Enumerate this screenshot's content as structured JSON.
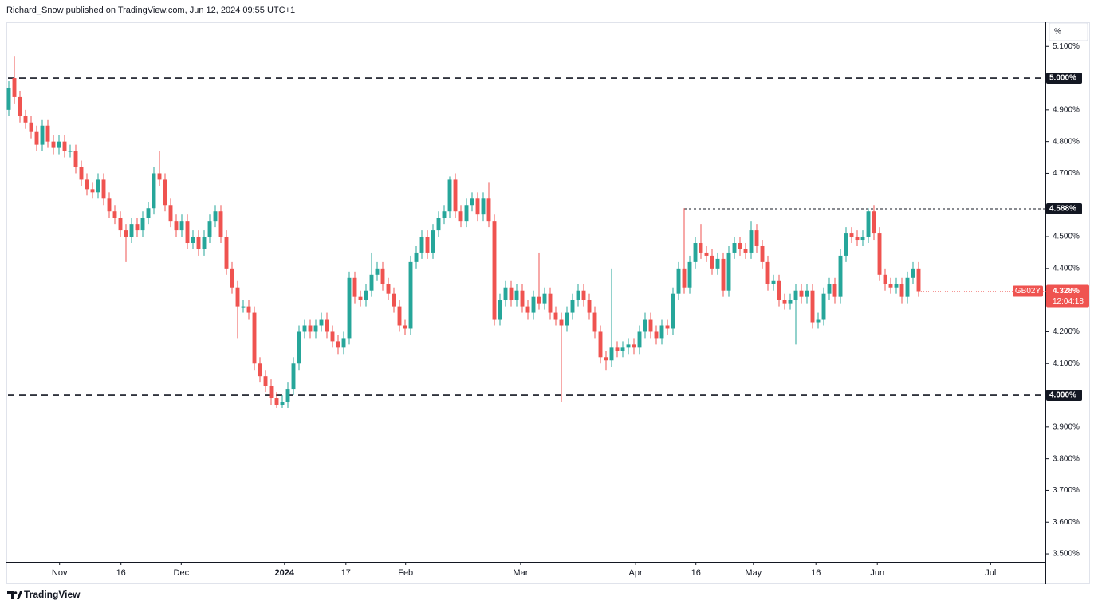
{
  "header": "Richard_Snow published on TradingView.com, Jun 12, 2024 09:55 UTC+1",
  "footer": "TradingView",
  "chart_data": {
    "type": "candlestick",
    "y_unit": "%",
    "ylim": [
      3.475,
      5.176
    ],
    "yticks": [
      {
        "value": 3.5,
        "label": "3.500%"
      },
      {
        "value": 3.6,
        "label": "3.600%"
      },
      {
        "value": 3.7,
        "label": "3.700%"
      },
      {
        "value": 3.8,
        "label": "3.800%"
      },
      {
        "value": 3.9,
        "label": "3.900%"
      },
      {
        "value": 4.1,
        "label": "4.100%"
      },
      {
        "value": 4.2,
        "label": "4.200%"
      },
      {
        "value": 4.4,
        "label": "4.400%"
      },
      {
        "value": 4.5,
        "label": "4.500%"
      },
      {
        "value": 4.7,
        "label": "4.700%"
      },
      {
        "value": 4.8,
        "label": "4.800%"
      },
      {
        "value": 4.9,
        "label": "4.900%"
      },
      {
        "value": 5.1,
        "label": "5.100%"
      }
    ],
    "xlim": [
      -0.143,
      185.57
    ],
    "xticks": [
      {
        "value": 9.1,
        "label": "Nov"
      },
      {
        "value": 20.1,
        "label": "16"
      },
      {
        "value": 30.9,
        "label": "Dec"
      },
      {
        "value": 49.4,
        "label": "2024"
      },
      {
        "value": 60.4,
        "label": "17"
      },
      {
        "value": 71.1,
        "label": "Feb"
      },
      {
        "value": 91.7,
        "label": "Mar"
      },
      {
        "value": 112.3,
        "label": "Apr"
      },
      {
        "value": 123.1,
        "label": "16"
      },
      {
        "value": 133.4,
        "label": "May"
      },
      {
        "value": 144.6,
        "label": "16"
      },
      {
        "value": 155.6,
        "label": "Jun"
      },
      {
        "value": 175.9,
        "label": "Jul"
      }
    ],
    "hlines": [
      {
        "value": 5.0,
        "label": "5.000%"
      },
      {
        "value": 4.0,
        "label": "4.000%"
      },
      {
        "value": 4.588,
        "label": "4.588%",
        "from": 121
      }
    ],
    "last_price_label": "4.328%",
    "countdown": "12:04:18",
    "series": [
      {
        "name": "GB02Y",
        "up_color": "#26a69a",
        "down_color": "#ef5350",
        "open": [
          4.9,
          5.0,
          4.94,
          4.88,
          4.86,
          4.83,
          4.79,
          4.85,
          4.8,
          4.78,
          4.8,
          4.77,
          4.77,
          4.72,
          4.68,
          4.65,
          4.64,
          4.68,
          4.62,
          4.58,
          4.56,
          4.52,
          4.5,
          4.54,
          4.52,
          4.56,
          4.59,
          4.7,
          4.68,
          4.6,
          4.55,
          4.52,
          4.55,
          4.48,
          4.5,
          4.46,
          4.5,
          4.55,
          4.58,
          4.5,
          4.4,
          4.34,
          4.28,
          4.28,
          4.26,
          4.1,
          4.06,
          4.03,
          3.99,
          3.97,
          3.98,
          4.02,
          4.1,
          4.2,
          4.22,
          4.2,
          4.22,
          4.24,
          4.2,
          4.17,
          4.15,
          4.18,
          4.37,
          4.31,
          4.3,
          4.33,
          4.38,
          4.4,
          4.35,
          4.32,
          4.28,
          4.22,
          4.21,
          4.42,
          4.45,
          4.5,
          4.45,
          4.52,
          4.56,
          4.58,
          4.68,
          4.58,
          4.55,
          4.6,
          4.62,
          4.57,
          4.62,
          4.55,
          4.24,
          4.3,
          4.34,
          4.3,
          4.33,
          4.28,
          4.26,
          4.31,
          4.29,
          4.32,
          4.26,
          4.24,
          4.22,
          4.26,
          4.3,
          4.33,
          4.3,
          4.26,
          4.2,
          4.12,
          4.11,
          4.15,
          4.14,
          4.15,
          4.16,
          4.15,
          4.2,
          4.24,
          4.2,
          4.18,
          4.22,
          4.21,
          4.32,
          4.4,
          4.34,
          4.42,
          4.48,
          4.45,
          4.44,
          4.4,
          4.43,
          4.33,
          4.45,
          4.48,
          4.46,
          4.45,
          4.52,
          4.47,
          4.42,
          4.35,
          4.36,
          4.3,
          4.29,
          4.3,
          4.33,
          4.31,
          4.33,
          4.23,
          4.24,
          4.32,
          4.35,
          4.31,
          4.44,
          4.51,
          4.5,
          4.49,
          4.5,
          4.58,
          4.51,
          4.38,
          4.35,
          4.34,
          4.35,
          4.31,
          4.37,
          4.4
        ],
        "high": [
          4.99,
          5.07,
          4.96,
          4.9,
          4.88,
          4.85,
          4.87,
          4.87,
          4.82,
          4.82,
          4.82,
          4.79,
          4.79,
          4.74,
          4.7,
          4.67,
          4.7,
          4.7,
          4.64,
          4.6,
          4.58,
          4.54,
          4.56,
          4.56,
          4.58,
          4.61,
          4.72,
          4.77,
          4.7,
          4.62,
          4.57,
          4.57,
          4.57,
          4.52,
          4.52,
          4.52,
          4.57,
          4.6,
          4.6,
          4.52,
          4.42,
          4.36,
          4.3,
          4.3,
          4.28,
          4.12,
          4.08,
          4.05,
          4.01,
          4.0,
          4.04,
          4.12,
          4.22,
          4.24,
          4.24,
          4.24,
          4.26,
          4.26,
          4.22,
          4.19,
          4.2,
          4.39,
          4.39,
          4.33,
          4.35,
          4.45,
          4.42,
          4.42,
          4.37,
          4.34,
          4.3,
          4.24,
          4.44,
          4.47,
          4.52,
          4.52,
          4.54,
          4.58,
          4.6,
          4.69,
          4.7,
          4.6,
          4.62,
          4.64,
          4.64,
          4.64,
          4.67,
          4.57,
          4.32,
          4.36,
          4.36,
          4.35,
          4.35,
          4.3,
          4.33,
          4.45,
          4.34,
          4.34,
          4.28,
          4.26,
          4.28,
          4.32,
          4.35,
          4.35,
          4.32,
          4.28,
          4.22,
          4.14,
          4.4,
          4.17,
          4.17,
          4.18,
          4.18,
          4.22,
          4.26,
          4.26,
          4.22,
          4.24,
          4.24,
          4.34,
          4.42,
          4.59,
          4.44,
          4.5,
          4.54,
          4.47,
          4.46,
          4.45,
          4.45,
          4.47,
          4.5,
          4.5,
          4.48,
          4.55,
          4.54,
          4.49,
          4.44,
          4.38,
          4.38,
          4.32,
          4.32,
          4.35,
          4.35,
          4.35,
          4.35,
          4.26,
          4.34,
          4.37,
          4.37,
          4.46,
          4.53,
          4.53,
          4.52,
          4.52,
          4.59,
          4.6,
          4.53,
          4.4,
          4.37,
          4.37,
          4.37,
          4.39,
          4.42,
          4.42
        ],
        "low": [
          4.88,
          4.92,
          4.86,
          4.84,
          4.81,
          4.77,
          4.77,
          4.78,
          4.76,
          4.76,
          4.75,
          4.75,
          4.7,
          4.66,
          4.63,
          4.62,
          4.62,
          4.6,
          4.56,
          4.54,
          4.5,
          4.42,
          4.48,
          4.5,
          4.5,
          4.54,
          4.57,
          4.66,
          4.58,
          4.53,
          4.5,
          4.5,
          4.46,
          4.46,
          4.44,
          4.44,
          4.48,
          4.53,
          4.48,
          4.38,
          4.32,
          4.18,
          4.26,
          4.24,
          4.08,
          4.04,
          4.01,
          3.97,
          3.96,
          3.96,
          3.96,
          4.0,
          4.08,
          4.18,
          4.18,
          4.18,
          4.2,
          4.18,
          4.15,
          4.13,
          4.13,
          4.16,
          4.29,
          4.28,
          4.28,
          4.31,
          4.36,
          4.33,
          4.3,
          4.26,
          4.2,
          4.19,
          4.19,
          4.4,
          4.43,
          4.43,
          4.43,
          4.5,
          4.54,
          4.56,
          4.56,
          4.53,
          4.53,
          4.58,
          4.55,
          4.55,
          4.53,
          4.22,
          4.22,
          4.28,
          4.28,
          4.28,
          4.26,
          4.24,
          4.24,
          4.27,
          4.27,
          4.24,
          4.22,
          3.98,
          4.2,
          4.24,
          4.28,
          4.28,
          4.24,
          4.18,
          4.1,
          4.08,
          4.09,
          4.12,
          4.12,
          4.13,
          4.13,
          4.13,
          4.18,
          4.18,
          4.16,
          4.16,
          4.19,
          4.19,
          4.3,
          4.32,
          4.32,
          4.4,
          4.43,
          4.42,
          4.38,
          4.38,
          4.31,
          4.31,
          4.43,
          4.44,
          4.43,
          4.43,
          4.45,
          4.4,
          4.33,
          4.33,
          4.28,
          4.27,
          4.27,
          4.16,
          4.29,
          4.29,
          4.21,
          4.21,
          4.22,
          4.3,
          4.29,
          4.29,
          4.42,
          4.48,
          4.47,
          4.47,
          4.48,
          4.49,
          4.36,
          4.33,
          4.32,
          4.32,
          4.29,
          4.29,
          4.35,
          4.31
        ],
        "close": [
          4.97,
          4.94,
          4.88,
          4.86,
          4.83,
          4.79,
          4.85,
          4.8,
          4.78,
          4.8,
          4.77,
          4.77,
          4.72,
          4.68,
          4.65,
          4.64,
          4.68,
          4.62,
          4.58,
          4.56,
          4.52,
          4.5,
          4.54,
          4.52,
          4.56,
          4.59,
          4.7,
          4.68,
          4.6,
          4.55,
          4.52,
          4.55,
          4.48,
          4.5,
          4.46,
          4.5,
          4.55,
          4.58,
          4.5,
          4.4,
          4.34,
          4.28,
          4.28,
          4.26,
          4.1,
          4.06,
          4.03,
          3.99,
          3.97,
          3.98,
          4.02,
          4.1,
          4.2,
          4.22,
          4.2,
          4.22,
          4.24,
          4.2,
          4.17,
          4.15,
          4.18,
          4.37,
          4.31,
          4.3,
          4.33,
          4.38,
          4.4,
          4.35,
          4.32,
          4.28,
          4.22,
          4.21,
          4.42,
          4.45,
          4.5,
          4.45,
          4.52,
          4.56,
          4.58,
          4.68,
          4.58,
          4.55,
          4.6,
          4.62,
          4.57,
          4.62,
          4.55,
          4.24,
          4.3,
          4.34,
          4.3,
          4.33,
          4.28,
          4.26,
          4.31,
          4.29,
          4.32,
          4.26,
          4.24,
          4.22,
          4.26,
          4.3,
          4.33,
          4.3,
          4.26,
          4.2,
          4.12,
          4.11,
          4.15,
          4.14,
          4.15,
          4.16,
          4.15,
          4.2,
          4.24,
          4.2,
          4.18,
          4.22,
          4.21,
          4.32,
          4.4,
          4.34,
          4.42,
          4.48,
          4.45,
          4.44,
          4.4,
          4.43,
          4.33,
          4.45,
          4.48,
          4.46,
          4.45,
          4.52,
          4.47,
          4.42,
          4.35,
          4.36,
          4.3,
          4.29,
          4.3,
          4.33,
          4.31,
          4.33,
          4.23,
          4.24,
          4.32,
          4.35,
          4.31,
          4.44,
          4.51,
          4.5,
          4.49,
          4.5,
          4.58,
          4.51,
          4.38,
          4.35,
          4.34,
          4.35,
          4.31,
          4.37,
          4.4,
          4.328
        ]
      }
    ]
  }
}
